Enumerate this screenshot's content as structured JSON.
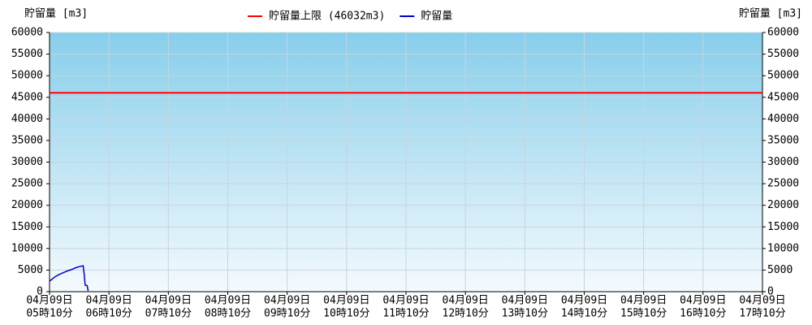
{
  "chart_data": {
    "type": "line",
    "y_label": "貯留量 [m3]",
    "y2_label": "貯留量 [m3]",
    "xlim": [
      310,
      1030
    ],
    "xticks": [
      {
        "value": 310,
        "label": [
          "04月09日",
          "05時10分"
        ]
      },
      {
        "value": 370,
        "label": [
          "04月09日",
          "06時10分"
        ]
      },
      {
        "value": 430,
        "label": [
          "04月09日",
          "07時10分"
        ]
      },
      {
        "value": 490,
        "label": [
          "04月09日",
          "08時10分"
        ]
      },
      {
        "value": 550,
        "label": [
          "04月09日",
          "09時10分"
        ]
      },
      {
        "value": 610,
        "label": [
          "04月09日",
          "10時10分"
        ]
      },
      {
        "value": 670,
        "label": [
          "04月09日",
          "11時10分"
        ]
      },
      {
        "value": 730,
        "label": [
          "04月09日",
          "12時10分"
        ]
      },
      {
        "value": 790,
        "label": [
          "04月09日",
          "13時10分"
        ]
      },
      {
        "value": 850,
        "label": [
          "04月09日",
          "14時10分"
        ]
      },
      {
        "value": 910,
        "label": [
          "04月09日",
          "15時10分"
        ]
      },
      {
        "value": 970,
        "label": [
          "04月09日",
          "16時10分"
        ]
      },
      {
        "value": 1030,
        "label": [
          "04月09日",
          "17時10分"
        ]
      }
    ],
    "ylim": [
      0,
      60000
    ],
    "yticks": [
      0,
      5000,
      10000,
      15000,
      20000,
      25000,
      30000,
      35000,
      40000,
      45000,
      50000,
      55000,
      60000
    ],
    "y2lim": [
      0,
      60000
    ],
    "grid": true,
    "series": [
      {
        "name": "貯留量上限 (46032m3)",
        "color": "#ff0000",
        "x": [
          310,
          1030
        ],
        "values": [
          46032,
          46032
        ]
      },
      {
        "name": "貯留量",
        "color": "#0000cc",
        "x": [
          310,
          311,
          313,
          316,
          320,
          324,
          328,
          332,
          336,
          340,
          344,
          345,
          346,
          348,
          349
        ],
        "values": [
          2500,
          2600,
          3000,
          3500,
          4000,
          4400,
          4800,
          5100,
          5500,
          5800,
          6000,
          4000,
          1500,
          1400,
          200
        ]
      }
    ]
  }
}
